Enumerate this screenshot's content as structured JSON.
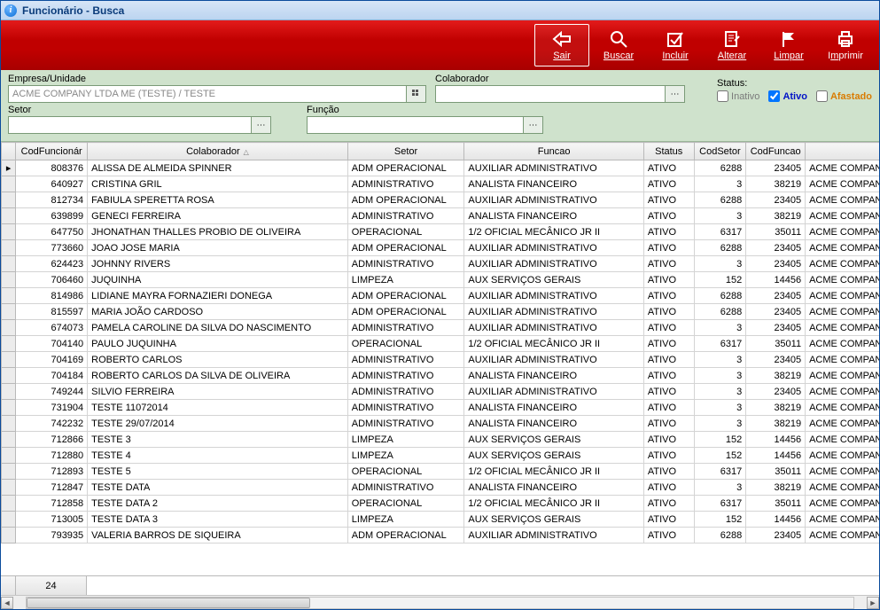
{
  "window": {
    "title": "Funcionário - Busca"
  },
  "toolbar": {
    "sair": {
      "label": "Sair",
      "underline_index": 0,
      "icon": "back-arrow",
      "active": true
    },
    "buscar": {
      "label": "Buscar",
      "underline_index": 0,
      "icon": "search"
    },
    "incluir": {
      "label": "Incluir",
      "underline_index": 0,
      "icon": "checkbox"
    },
    "alterar": {
      "label": "Alterar",
      "underline_index": 0,
      "icon": "edit-doc"
    },
    "limpar": {
      "label": "Limpar",
      "underline_index": 0,
      "icon": "flag"
    },
    "imprimir": {
      "label": "Imprimir",
      "underline_index": 1,
      "icon": "printer"
    }
  },
  "filters": {
    "empresa_label": "Empresa/Unidade",
    "empresa_value": "ACME COMPANY LTDA ME (TESTE) / TESTE",
    "colaborador_label": "Colaborador",
    "colaborador_value": "",
    "setor_label": "Setor",
    "setor_value": "",
    "funcao_label": "Função",
    "funcao_value": "",
    "status_label": "Status:",
    "status_options": {
      "inativo": {
        "label": "Inativo",
        "checked": false
      },
      "ativo": {
        "label": "Ativo",
        "checked": true
      },
      "afastado": {
        "label": "Afastado",
        "checked": false
      }
    }
  },
  "grid": {
    "columns": [
      {
        "key": "cod",
        "label": "CodFuncionár",
        "class": "col-cod"
      },
      {
        "key": "colab",
        "label": "Colaborador",
        "class": "col-colab",
        "sorted": true
      },
      {
        "key": "setor",
        "label": "Setor",
        "class": "col-setor"
      },
      {
        "key": "funcao",
        "label": "Funcao",
        "class": "col-funcao"
      },
      {
        "key": "status",
        "label": "Status",
        "class": "col-status"
      },
      {
        "key": "codsetor",
        "label": "CodSetor",
        "class": "col-codsetor"
      },
      {
        "key": "codfuncao",
        "label": "CodFuncao",
        "class": "col-codfuncao"
      },
      {
        "key": "empresa",
        "label": "",
        "class": "col-emp"
      }
    ],
    "rows": [
      {
        "cod": "808376",
        "colab": "ALISSA DE ALMEIDA SPINNER",
        "setor": "ADM OPERACIONAL",
        "funcao": "AUXILIAR ADMINISTRATIVO",
        "status": "ATIVO",
        "codsetor": "6288",
        "codfuncao": "23405",
        "empresa": "ACME COMPAN",
        "current": true
      },
      {
        "cod": "640927",
        "colab": "CRISTINA GRIL",
        "setor": "ADMINISTRATIVO",
        "funcao": "ANALISTA FINANCEIRO",
        "status": "ATIVO",
        "codsetor": "3",
        "codfuncao": "38219",
        "empresa": "ACME COMPAN"
      },
      {
        "cod": "812734",
        "colab": "FABIULA SPERETTA ROSA",
        "setor": "ADM OPERACIONAL",
        "funcao": "AUXILIAR ADMINISTRATIVO",
        "status": "ATIVO",
        "codsetor": "6288",
        "codfuncao": "23405",
        "empresa": "ACME COMPAN"
      },
      {
        "cod": "639899",
        "colab": "GENECI FERREIRA",
        "setor": "ADMINISTRATIVO",
        "funcao": "ANALISTA FINANCEIRO",
        "status": "ATIVO",
        "codsetor": "3",
        "codfuncao": "38219",
        "empresa": "ACME COMPAN"
      },
      {
        "cod": "647750",
        "colab": "JHONATHAN THALLES PROBIO DE OLIVEIRA",
        "setor": "OPERACIONAL",
        "funcao": "1/2 OFICIAL MECÂNICO JR II",
        "status": "ATIVO",
        "codsetor": "6317",
        "codfuncao": "35011",
        "empresa": "ACME COMPAN"
      },
      {
        "cod": "773660",
        "colab": "JOAO JOSE MARIA",
        "setor": "ADM OPERACIONAL",
        "funcao": "AUXILIAR ADMINISTRATIVO",
        "status": "ATIVO",
        "codsetor": "6288",
        "codfuncao": "23405",
        "empresa": "ACME COMPAN"
      },
      {
        "cod": "624423",
        "colab": "JOHNNY RIVERS",
        "setor": "ADMINISTRATIVO",
        "funcao": "AUXILIAR ADMINISTRATIVO",
        "status": "ATIVO",
        "codsetor": "3",
        "codfuncao": "23405",
        "empresa": "ACME COMPAN"
      },
      {
        "cod": "706460",
        "colab": "JUQUINHA",
        "setor": "LIMPEZA",
        "funcao": "AUX SERVIÇOS GERAIS",
        "status": "ATIVO",
        "codsetor": "152",
        "codfuncao": "14456",
        "empresa": "ACME COMPAN"
      },
      {
        "cod": "814986",
        "colab": "LIDIANE MAYRA FORNAZIERI DONEGA",
        "setor": "ADM OPERACIONAL",
        "funcao": "AUXILIAR ADMINISTRATIVO",
        "status": "ATIVO",
        "codsetor": "6288",
        "codfuncao": "23405",
        "empresa": "ACME COMPAN"
      },
      {
        "cod": "815597",
        "colab": "MARIA JOÃO CARDOSO",
        "setor": "ADM OPERACIONAL",
        "funcao": "AUXILIAR ADMINISTRATIVO",
        "status": "ATIVO",
        "codsetor": "6288",
        "codfuncao": "23405",
        "empresa": "ACME COMPAN"
      },
      {
        "cod": "674073",
        "colab": "PAMELA CAROLINE DA SILVA DO NASCIMENTO",
        "setor": "ADMINISTRATIVO",
        "funcao": "AUXILIAR ADMINISTRATIVO",
        "status": "ATIVO",
        "codsetor": "3",
        "codfuncao": "23405",
        "empresa": "ACME COMPAN"
      },
      {
        "cod": "704140",
        "colab": "PAULO JUQUINHA",
        "setor": "OPERACIONAL",
        "funcao": "1/2 OFICIAL MECÂNICO JR II",
        "status": "ATIVO",
        "codsetor": "6317",
        "codfuncao": "35011",
        "empresa": "ACME COMPAN"
      },
      {
        "cod": "704169",
        "colab": "ROBERTO CARLOS",
        "setor": "ADMINISTRATIVO",
        "funcao": "AUXILIAR ADMINISTRATIVO",
        "status": "ATIVO",
        "codsetor": "3",
        "codfuncao": "23405",
        "empresa": "ACME COMPAN"
      },
      {
        "cod": "704184",
        "colab": "ROBERTO CARLOS DA SILVA DE OLIVEIRA",
        "setor": "ADMINISTRATIVO",
        "funcao": "ANALISTA FINANCEIRO",
        "status": "ATIVO",
        "codsetor": "3",
        "codfuncao": "38219",
        "empresa": "ACME COMPAN"
      },
      {
        "cod": "749244",
        "colab": "SILVIO FERREIRA",
        "setor": "ADMINISTRATIVO",
        "funcao": "AUXILIAR ADMINISTRATIVO",
        "status": "ATIVO",
        "codsetor": "3",
        "codfuncao": "23405",
        "empresa": "ACME COMPAN"
      },
      {
        "cod": "731904",
        "colab": "TESTE 11072014",
        "setor": "ADMINISTRATIVO",
        "funcao": "ANALISTA FINANCEIRO",
        "status": "ATIVO",
        "codsetor": "3",
        "codfuncao": "38219",
        "empresa": "ACME COMPAN"
      },
      {
        "cod": "742232",
        "colab": "TESTE 29/07/2014",
        "setor": "ADMINISTRATIVO",
        "funcao": "ANALISTA FINANCEIRO",
        "status": "ATIVO",
        "codsetor": "3",
        "codfuncao": "38219",
        "empresa": "ACME COMPAN"
      },
      {
        "cod": "712866",
        "colab": "TESTE 3",
        "setor": "LIMPEZA",
        "funcao": "AUX SERVIÇOS GERAIS",
        "status": "ATIVO",
        "codsetor": "152",
        "codfuncao": "14456",
        "empresa": "ACME COMPAN"
      },
      {
        "cod": "712880",
        "colab": "TESTE 4",
        "setor": "LIMPEZA",
        "funcao": "AUX SERVIÇOS GERAIS",
        "status": "ATIVO",
        "codsetor": "152",
        "codfuncao": "14456",
        "empresa": "ACME COMPAN"
      },
      {
        "cod": "712893",
        "colab": "TESTE 5",
        "setor": "OPERACIONAL",
        "funcao": "1/2 OFICIAL MECÂNICO JR II",
        "status": "ATIVO",
        "codsetor": "6317",
        "codfuncao": "35011",
        "empresa": "ACME COMPAN"
      },
      {
        "cod": "712847",
        "colab": "TESTE DATA",
        "setor": "ADMINISTRATIVO",
        "funcao": "ANALISTA FINANCEIRO",
        "status": "ATIVO",
        "codsetor": "3",
        "codfuncao": "38219",
        "empresa": "ACME COMPAN"
      },
      {
        "cod": "712858",
        "colab": "TESTE DATA 2",
        "setor": "OPERACIONAL",
        "funcao": "1/2 OFICIAL MECÂNICO JR II",
        "status": "ATIVO",
        "codsetor": "6317",
        "codfuncao": "35011",
        "empresa": "ACME COMPAN"
      },
      {
        "cod": "713005",
        "colab": "TESTE DATA 3",
        "setor": "LIMPEZA",
        "funcao": "AUX SERVIÇOS GERAIS",
        "status": "ATIVO",
        "codsetor": "152",
        "codfuncao": "14456",
        "empresa": "ACME COMPAN"
      },
      {
        "cod": "793935",
        "colab": "VALERIA BARROS DE SIQUEIRA",
        "setor": "ADM OPERACIONAL",
        "funcao": "AUXILIAR ADMINISTRATIVO",
        "status": "ATIVO",
        "codsetor": "6288",
        "codfuncao": "23405",
        "empresa": "ACME COMPAN"
      }
    ],
    "row_count": "24"
  },
  "colors": {
    "toolbar_red": "#c00000",
    "filterbar_green": "#cfe2cc",
    "titlebar_blue": "#bcd4f0"
  }
}
